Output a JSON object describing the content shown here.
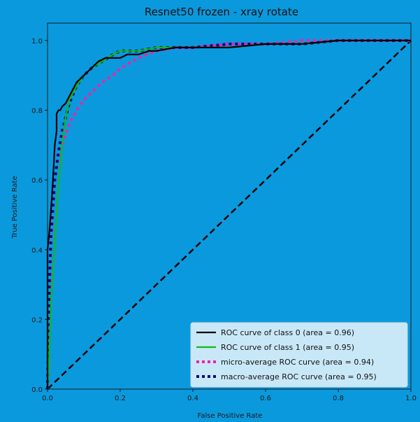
{
  "chart_data": {
    "type": "line",
    "title": "Resnet50 frozen - xray rotate",
    "xlabel": "False Positive Rate",
    "ylabel": "True Positive Rate",
    "xlim": [
      0.0,
      1.0
    ],
    "ylim": [
      0.0,
      1.05
    ],
    "x_ticks": [
      "0.0",
      "0.2",
      "0.4",
      "0.6",
      "0.8",
      "1.0"
    ],
    "y_ticks": [
      "0.0",
      "0.2",
      "0.4",
      "0.6",
      "0.8",
      "1.0"
    ],
    "grid": false,
    "legend_position": "lower-right",
    "series": [
      {
        "name": "ROC curve of class 0 (area = 0.96)",
        "color": "#000000",
        "style": "solid",
        "x": [
          0.0,
          0.0,
          0.005,
          0.01,
          0.015,
          0.02,
          0.025,
          0.025,
          0.03,
          0.035,
          0.04,
          0.05,
          0.06,
          0.07,
          0.08,
          0.1,
          0.12,
          0.14,
          0.16,
          0.18,
          0.2,
          0.22,
          0.25,
          0.28,
          0.3,
          0.35,
          0.4,
          0.5,
          0.6,
          0.7,
          0.8,
          0.9,
          1.0
        ],
        "y": [
          0.0,
          0.4,
          0.45,
          0.52,
          0.6,
          0.7,
          0.74,
          0.79,
          0.8,
          0.8,
          0.81,
          0.82,
          0.84,
          0.86,
          0.88,
          0.9,
          0.92,
          0.94,
          0.95,
          0.95,
          0.95,
          0.96,
          0.96,
          0.97,
          0.97,
          0.98,
          0.98,
          0.98,
          0.99,
          0.99,
          1.0,
          1.0,
          1.0
        ]
      },
      {
        "name": "ROC curve of class 1 (area = 0.95)",
        "color": "#11bb11",
        "style": "solid",
        "x": [
          0.0,
          0.005,
          0.01,
          0.02,
          0.03,
          0.04,
          0.05,
          0.06,
          0.08,
          0.1,
          0.12,
          0.15,
          0.18,
          0.2,
          0.25,
          0.3,
          0.4,
          0.5,
          0.6,
          0.7,
          0.8,
          0.9,
          1.0
        ],
        "y": [
          0.0,
          0.1,
          0.25,
          0.42,
          0.58,
          0.7,
          0.78,
          0.83,
          0.87,
          0.9,
          0.92,
          0.94,
          0.96,
          0.97,
          0.97,
          0.98,
          0.98,
          0.98,
          0.99,
          0.99,
          1.0,
          1.0,
          1.0
        ]
      },
      {
        "name": "micro-average ROC curve (area = 0.94)",
        "color": "#ee22aa",
        "style": "dotted",
        "x": [
          0.0,
          0.005,
          0.01,
          0.02,
          0.03,
          0.04,
          0.05,
          0.06,
          0.08,
          0.1,
          0.12,
          0.15,
          0.18,
          0.2,
          0.25,
          0.3,
          0.35,
          0.4,
          0.5,
          0.6,
          0.7,
          0.8,
          0.9,
          1.0
        ],
        "y": [
          0.0,
          0.2,
          0.42,
          0.6,
          0.66,
          0.7,
          0.73,
          0.76,
          0.8,
          0.83,
          0.85,
          0.88,
          0.9,
          0.92,
          0.95,
          0.97,
          0.98,
          0.98,
          0.99,
          0.99,
          1.0,
          1.0,
          1.0,
          1.0
        ]
      },
      {
        "name": "macro-average ROC curve (area = 0.95)",
        "color": "#0a0a80",
        "style": "dotted",
        "x": [
          0.0,
          0.005,
          0.01,
          0.02,
          0.03,
          0.04,
          0.05,
          0.06,
          0.08,
          0.1,
          0.12,
          0.15,
          0.18,
          0.2,
          0.25,
          0.3,
          0.4,
          0.5,
          0.6,
          0.7,
          0.8,
          0.9,
          1.0
        ],
        "y": [
          0.0,
          0.3,
          0.45,
          0.6,
          0.68,
          0.74,
          0.78,
          0.82,
          0.87,
          0.9,
          0.92,
          0.94,
          0.96,
          0.97,
          0.97,
          0.98,
          0.98,
          0.99,
          0.99,
          0.99,
          1.0,
          1.0,
          1.0
        ]
      },
      {
        "name": "",
        "color": "#000000",
        "style": "dashed",
        "x": [
          0.0,
          1.0
        ],
        "y": [
          0.0,
          1.0
        ]
      }
    ]
  }
}
